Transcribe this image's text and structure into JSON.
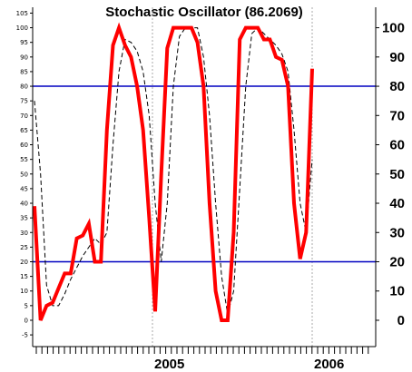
{
  "chart_data": {
    "type": "line",
    "title": "Stochastic Oscillator (86.2069)",
    "xlabel": "",
    "ylabel": "",
    "x_tick_labels": [
      "2005",
      "2006"
    ],
    "y_left_ticks": [
      "105",
      "100",
      "95",
      "90",
      "85",
      "80",
      "75",
      "70",
      "65",
      "60",
      "55",
      "50",
      "45",
      "40",
      "35",
      "30",
      "25",
      "20",
      "15",
      "10",
      "5",
      "0",
      "-5"
    ],
    "y_right_ticks": [
      "100",
      "90",
      "80",
      "70",
      "60",
      "50",
      "40",
      "30",
      "20",
      "10",
      "0"
    ],
    "ylim": [
      -9,
      107
    ],
    "reference_lines": [
      80,
      20
    ],
    "grid": "vertical dashed at year boundaries",
    "colors": {
      "k_line": "#ff0000",
      "d_line": "#000000",
      "reference": "#0000c0",
      "grid": "#aaaaaa"
    },
    "series": [
      {
        "values": [
          39,
          0,
          5,
          6,
          11,
          16,
          16,
          28,
          29,
          33,
          20,
          20,
          65,
          94,
          100,
          94,
          90,
          80,
          65,
          35,
          3,
          50,
          93,
          100,
          100,
          100,
          100,
          95,
          80,
          40,
          10,
          0,
          0,
          30,
          96,
          100,
          100,
          100,
          96,
          96,
          90,
          89,
          80,
          40,
          21,
          30,
          86
        ]
      },
      {
        "values": [
          75,
          50,
          12,
          5,
          5,
          9,
          14,
          18,
          22,
          25,
          28,
          26,
          30,
          60,
          85,
          96,
          95,
          92,
          85,
          70,
          40,
          20,
          40,
          80,
          97,
          100,
          100,
          100,
          90,
          70,
          40,
          15,
          2,
          10,
          45,
          80,
          98,
          100,
          98,
          96,
          94,
          91,
          85,
          65,
          40,
          30,
          55
        ]
      }
    ]
  }
}
